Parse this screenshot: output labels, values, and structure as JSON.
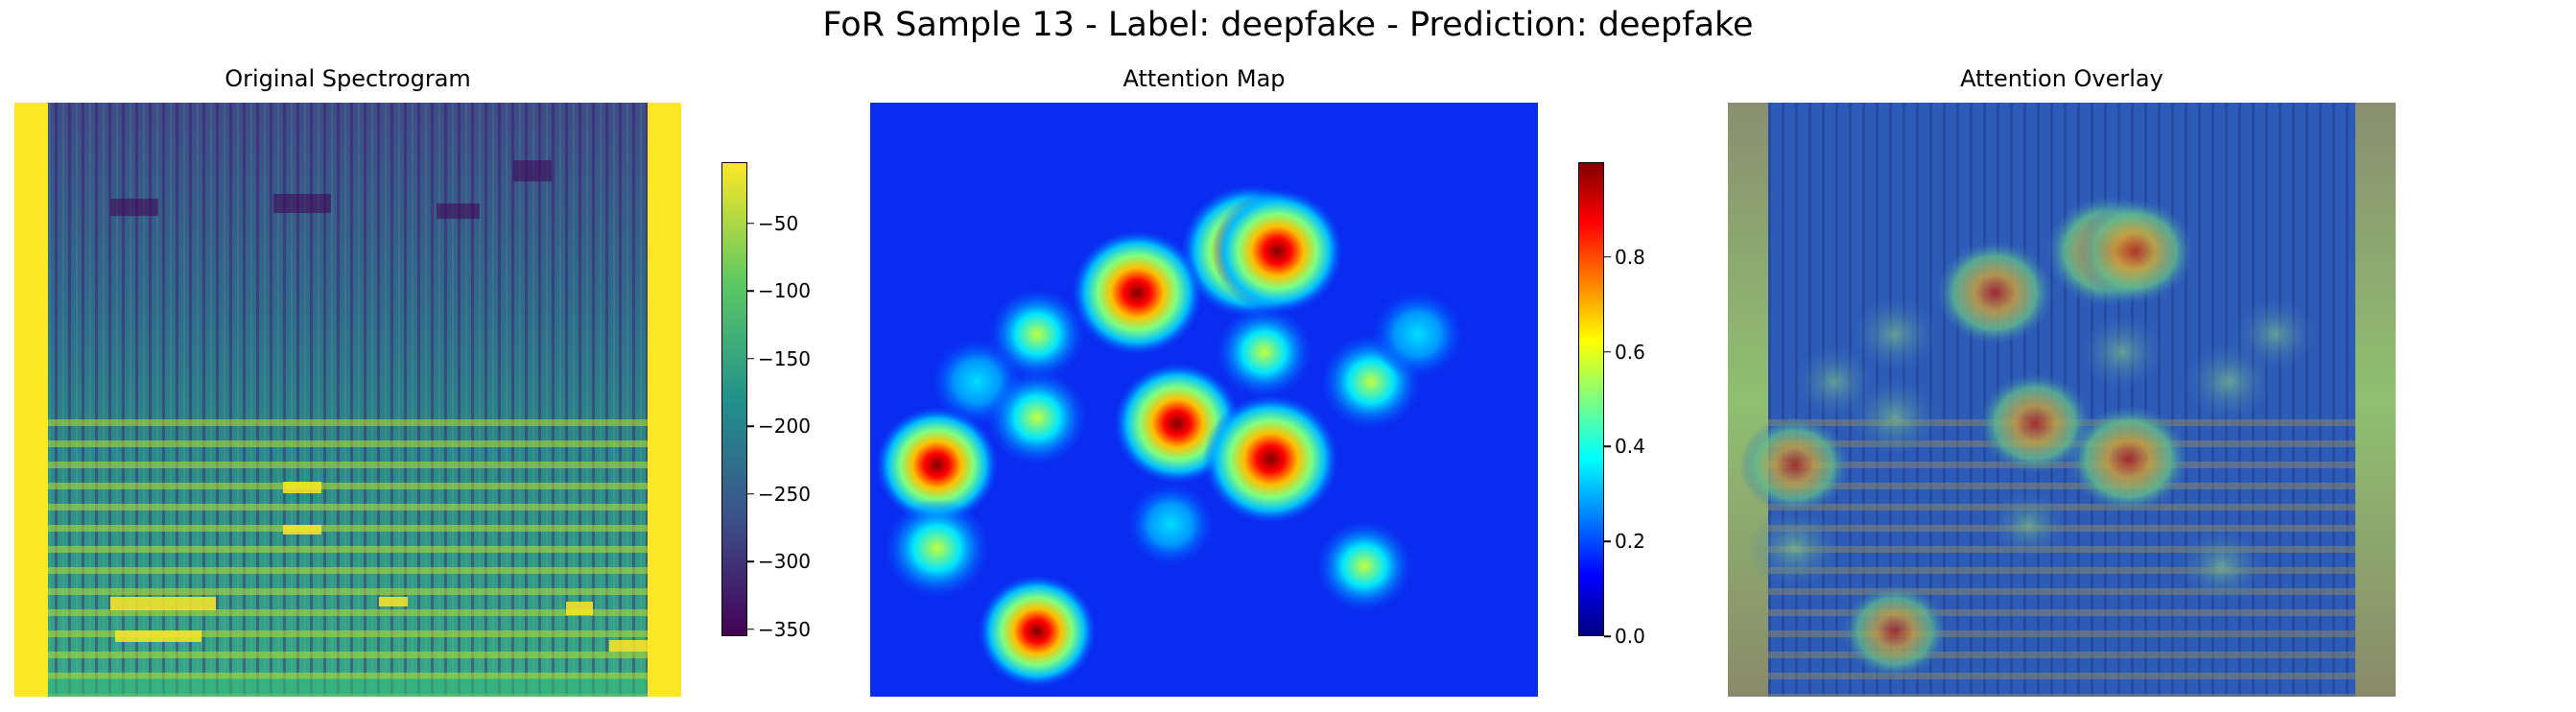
{
  "suptitle": "FoR Sample 13 - Label: deepfake - Prediction: deepfake",
  "chart_data": [
    {
      "type": "heatmap",
      "title": "Original Spectrogram",
      "colormap": "viridis",
      "axes_visible": false,
      "colorbar": {
        "ticks": [
          -50,
          -100,
          -150,
          -200,
          -250,
          -300,
          -350
        ],
        "tick_labels": [
          "−50",
          "−100",
          "−150",
          "−200",
          "−250",
          "−300",
          "−350"
        ],
        "range": [
          -355,
          -5
        ]
      },
      "content": "speech spectrogram (frequency bins vs time frames), padded edges at max value"
    },
    {
      "type": "heatmap",
      "title": "Attention Map",
      "colormap": "jet",
      "axes_visible": false,
      "colorbar": {
        "ticks": [
          0.0,
          0.2,
          0.4,
          0.6,
          0.8
        ],
        "tick_labels": [
          "0.0",
          "0.2",
          "0.4",
          "0.6",
          "0.8"
        ],
        "range": [
          0.0,
          1.0
        ]
      },
      "hotspots": [
        {
          "x": 0.57,
          "y": 0.25,
          "value": 0.95
        },
        {
          "x": 0.61,
          "y": 0.25,
          "value": 0.85
        },
        {
          "x": 0.4,
          "y": 0.32,
          "value": 0.85
        },
        {
          "x": 0.46,
          "y": 0.54,
          "value": 0.8
        },
        {
          "x": 0.6,
          "y": 0.6,
          "value": 0.9
        },
        {
          "x": 0.1,
          "y": 0.61,
          "value": 0.75
        },
        {
          "x": 0.25,
          "y": 0.89,
          "value": 0.7
        },
        {
          "x": 0.25,
          "y": 0.39,
          "value": 0.45
        },
        {
          "x": 0.16,
          "y": 0.47,
          "value": 0.4
        },
        {
          "x": 0.25,
          "y": 0.53,
          "value": 0.5
        },
        {
          "x": 0.1,
          "y": 0.75,
          "value": 0.55
        },
        {
          "x": 0.75,
          "y": 0.47,
          "value": 0.5
        },
        {
          "x": 0.82,
          "y": 0.39,
          "value": 0.4
        },
        {
          "x": 0.74,
          "y": 0.78,
          "value": 0.45
        },
        {
          "x": 0.45,
          "y": 0.71,
          "value": 0.35
        },
        {
          "x": 0.59,
          "y": 0.42,
          "value": 0.45
        }
      ]
    },
    {
      "type": "heatmap",
      "title": "Attention Overlay",
      "colormap": "jet overlay on spectrogram",
      "axes_visible": false
    }
  ]
}
